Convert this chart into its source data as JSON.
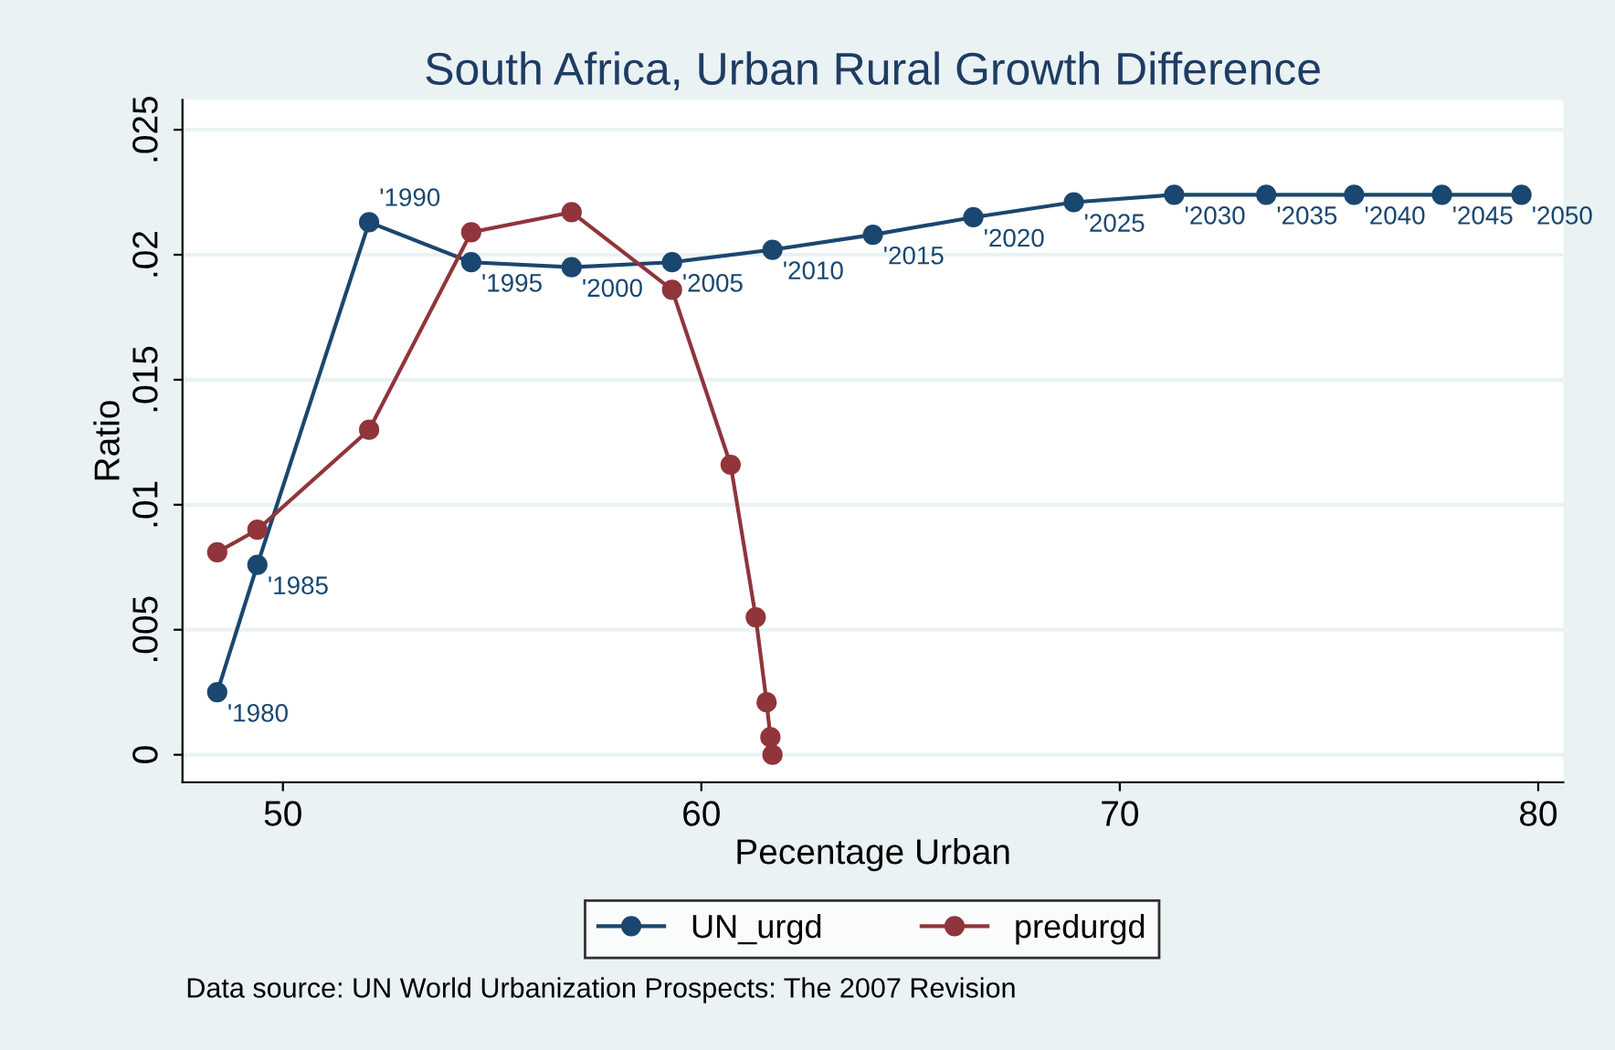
{
  "chart_data": {
    "type": "line",
    "title": "South Africa, Urban Rural Growth Difference",
    "xlabel": "Pecentage Urban",
    "ylabel": "Ratio",
    "series": [
      {
        "name": "UN_urgd",
        "color": "#1a476f",
        "x": [
          48.43,
          49.39,
          52.06,
          54.5,
          56.9,
          59.3,
          61.7,
          64.1,
          66.5,
          68.9,
          71.3,
          73.5,
          75.6,
          77.7,
          79.6
        ],
        "values": [
          0.0025,
          0.0076,
          0.0213,
          0.0197,
          0.0195,
          0.0197,
          0.0202,
          0.0208,
          0.0215,
          0.0221,
          0.0224,
          0.0224,
          0.0224,
          0.0224,
          0.0224
        ]
      },
      {
        "name": "predurgd",
        "color": "#90353b",
        "x": [
          48.43,
          49.39,
          52.06,
          54.5,
          56.9,
          59.3,
          60.7,
          61.3,
          61.56,
          61.65,
          61.7
        ],
        "values": [
          0.0081,
          0.009,
          0.013,
          0.0209,
          0.0217,
          0.0186,
          0.0116,
          0.0055,
          0.0021,
          0.0007,
          0.0
        ]
      }
    ],
    "annotations": [
      {
        "text": "'1980",
        "x": 48.43,
        "y": 0.0025
      },
      {
        "text": "'1985",
        "x": 49.39,
        "y": 0.0076
      },
      {
        "text": "'1990",
        "x": 52.06,
        "y": 0.0213
      },
      {
        "text": "'1995",
        "x": 54.5,
        "y": 0.0197
      },
      {
        "text": "'2000",
        "x": 56.9,
        "y": 0.0195
      },
      {
        "text": "'2005",
        "x": 59.3,
        "y": 0.0197
      },
      {
        "text": "'2010",
        "x": 61.7,
        "y": 0.0202
      },
      {
        "text": "'2015",
        "x": 64.1,
        "y": 0.0208
      },
      {
        "text": "'2020",
        "x": 66.5,
        "y": 0.0215
      },
      {
        "text": "'2025",
        "x": 68.9,
        "y": 0.0221
      },
      {
        "text": "'2030",
        "x": 71.3,
        "y": 0.0224
      },
      {
        "text": "'2035",
        "x": 73.5,
        "y": 0.0224
      },
      {
        "text": "'2040",
        "x": 75.6,
        "y": 0.0224
      },
      {
        "text": "'2045",
        "x": 77.7,
        "y": 0.0224
      },
      {
        "text": "'2050",
        "x": 79.6,
        "y": 0.0224
      },
      "Data source: UN World Urbanization Prospects: The 2007 Revision"
    ],
    "xlim": [
      47.6,
      80.6
    ],
    "ylim": [
      -0.0011,
      0.0262
    ],
    "xticks": [
      50,
      60,
      70,
      80
    ],
    "yticks": [
      0,
      {
        "value": 0.005,
        "label": ".005"
      },
      {
        "value": 0.01,
        "label": ".01"
      },
      {
        "value": 0.015,
        "label": ".015"
      },
      {
        "value": 0.02,
        "label": ".02"
      },
      {
        "value": 0.025,
        "label": ".025"
      }
    ],
    "grid": "y",
    "legend": "bottom",
    "marker": "circle",
    "line_style": "solid"
  }
}
